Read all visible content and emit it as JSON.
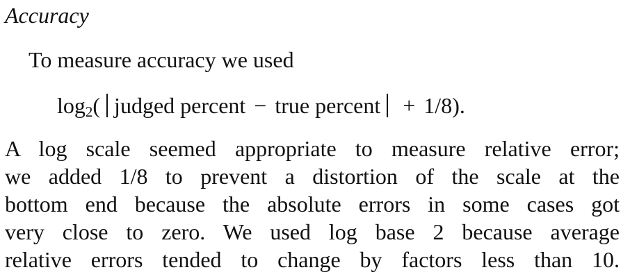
{
  "section": {
    "heading": "Accuracy",
    "intro": "To measure accuracy we used",
    "formula": {
      "func": "log",
      "base": "2",
      "open": "(",
      "term1": "judged percent",
      "minus": "−",
      "term2": "true percent",
      "plus": "+",
      "constant": "1/8).",
      "full_text": "log2( | judged percent − true percent | + 1/8)."
    },
    "paragraph_lines": [
      "A log scale seemed appropriate to measure relative error;",
      "we added 1/8 to prevent a distortion of the scale at the",
      "bottom end because the absolute errors in some cases got",
      "very close to zero. We used log base 2 because average",
      "relative errors tended to change by factors less than 10."
    ]
  }
}
